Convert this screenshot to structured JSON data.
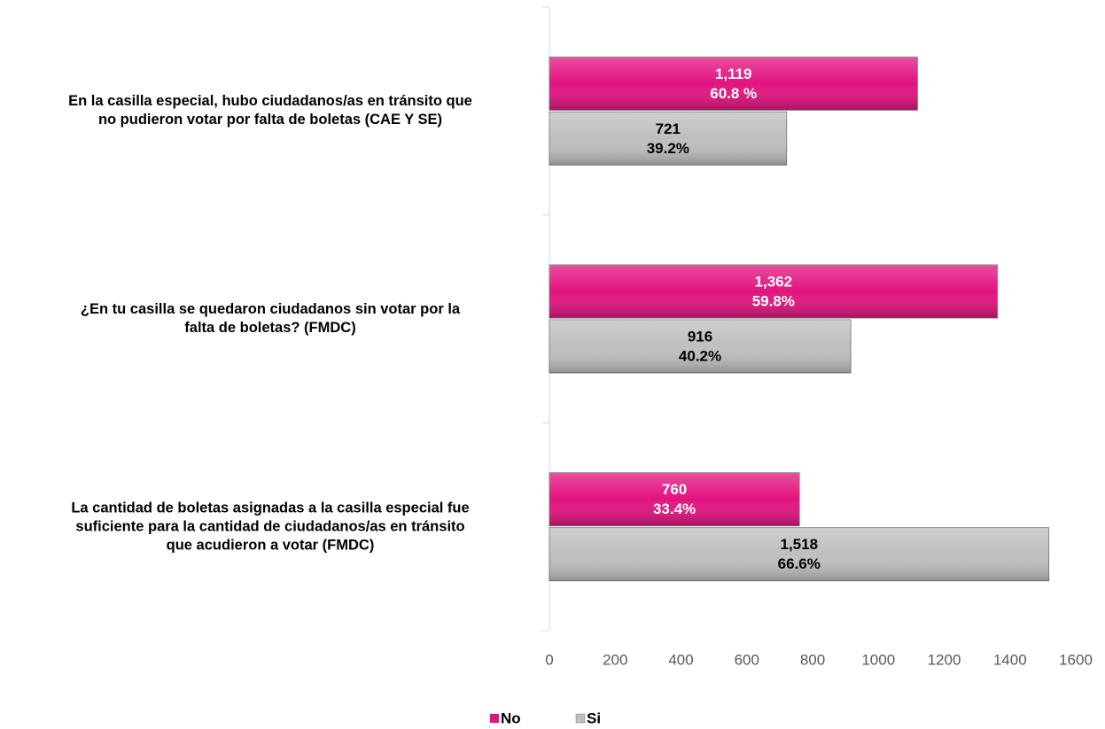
{
  "chart_data": {
    "type": "hbar",
    "categories": [
      "En la casilla especial, hubo ciudadanos/as en tránsito que\nno pudieron votar por falta de boletas (CAE Y SE)",
      "¿En tu casilla se quedaron ciudadanos sin votar por la\nfalta de boletas? (FMDC)",
      "La cantidad de boletas asignadas a la casilla especial fue\nsuficiente para la cantidad de ciudadanos/as en tránsito\nque acudieron a votar (FMDC)"
    ],
    "series": [
      {
        "name": "No",
        "color": "#e2137f",
        "label_color": "#ffffff",
        "values": [
          1119,
          1362,
          760
        ],
        "value_labels": [
          "1,119",
          "1,362",
          "760"
        ],
        "share_labels": [
          "60.8 %",
          "59.8%",
          "33.4%"
        ]
      },
      {
        "name": "Si",
        "color": "#bfbfbf",
        "label_color": "#000000",
        "values": [
          721,
          916,
          1518
        ],
        "value_labels": [
          "721",
          "916",
          "1,518"
        ],
        "share_labels": [
          "39.2%",
          "40.2%",
          "66.6%"
        ]
      }
    ],
    "xlim": [
      0,
      1600
    ],
    "xticks": [
      0,
      200,
      400,
      600,
      800,
      1000,
      1200,
      1400,
      1600
    ],
    "grid": false,
    "legend": "bottom"
  }
}
